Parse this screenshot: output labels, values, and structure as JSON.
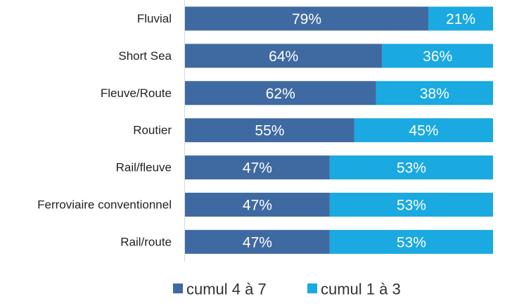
{
  "chart_data": {
    "type": "bar",
    "orientation": "horizontal",
    "stacked": true,
    "percent_stacked": true,
    "categories": [
      "Fluvial",
      "Short Sea",
      "Fleuve/Route",
      "Routier",
      "Rail/fleuve",
      "Ferroviaire conventionnel",
      "Rail/route"
    ],
    "series": [
      {
        "name": "cumul 4 à 7",
        "color": "#3f6aa1",
        "values": [
          79,
          64,
          62,
          55,
          47,
          47,
          47
        ],
        "labels": [
          "79%",
          "64%",
          "62%",
          "55%",
          "47%",
          "47%",
          "47%"
        ]
      },
      {
        "name": "cumul 1 à 3",
        "color": "#1aa9e0",
        "values": [
          21,
          36,
          38,
          45,
          53,
          53,
          53
        ],
        "labels": [
          "21%",
          "36%",
          "38%",
          "45%",
          "53%",
          "53%",
          "53%"
        ]
      }
    ],
    "xlim": [
      0,
      100
    ],
    "grid": false,
    "legend_position": "bottom-center",
    "data_label_color": "#ffffff",
    "category_label_color": "#222222",
    "axis_line_color": "#d9d9d9"
  }
}
